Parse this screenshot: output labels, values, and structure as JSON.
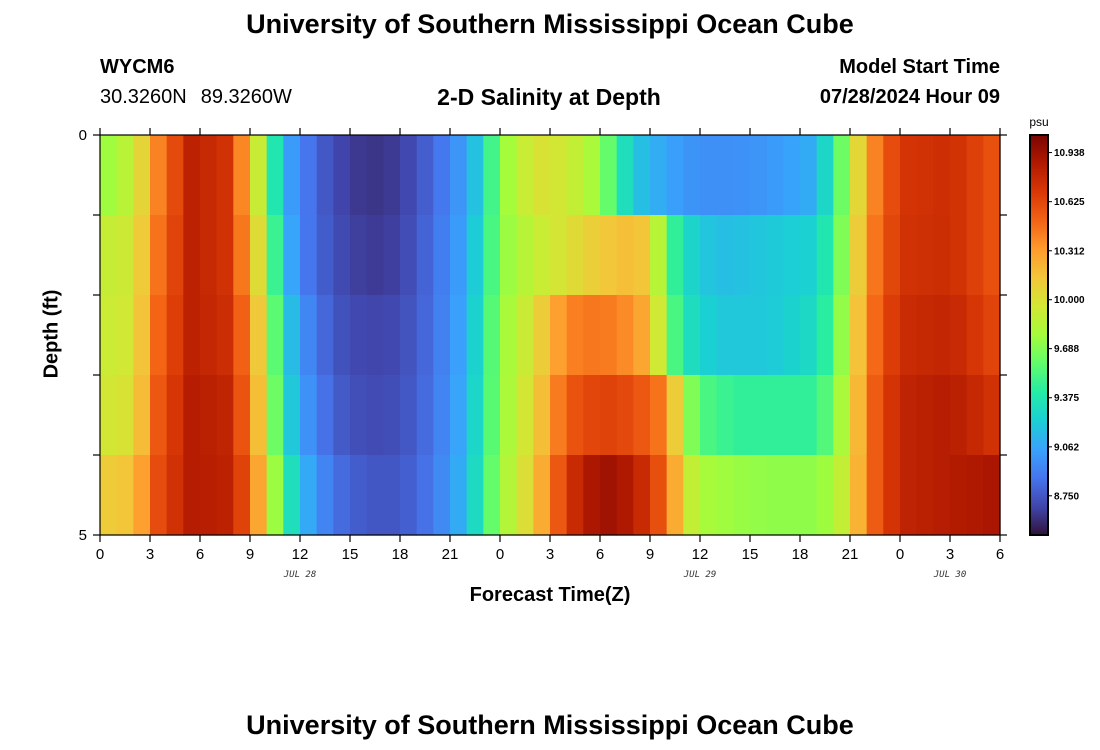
{
  "page": {
    "title": "University of Southern Mississippi Ocean Cube",
    "footer_title": "University of Southern Mississippi Ocean Cube",
    "station_id": "WYCM6",
    "lat": "30.3260N",
    "lon": "89.3260W",
    "subtitle": "2-D Salinity at Depth",
    "model_start_label": "Model Start Time",
    "model_start_value": "07/28/2024 Hour 09"
  },
  "chart_data": {
    "type": "heatmap",
    "title": "2-D Salinity at Depth",
    "xlabel": "Forecast Time(Z)",
    "ylabel": "Depth (ft)",
    "x_hours_range": [
      0,
      54
    ],
    "x_tick_labels": [
      "0",
      "3",
      "6",
      "9",
      "12",
      "15",
      "18",
      "21",
      "0",
      "3",
      "6",
      "9",
      "12",
      "15",
      "18",
      "21",
      "0",
      "3",
      "6"
    ],
    "date_labels": [
      {
        "text": "JUL 28",
        "hour": 12
      },
      {
        "text": "JUL 29",
        "hour": 36
      },
      {
        "text": "JUL 30",
        "hour": 51
      }
    ],
    "y_ticks": [
      0,
      5
    ],
    "y_range": [
      0,
      5
    ],
    "colorbar": {
      "unit": "psu",
      "min": 8.5,
      "max": 11.05,
      "tick_labels": [
        "10.938",
        "10.625",
        "10.312",
        "10.000",
        "9.688",
        "9.375",
        "9.062",
        "8.750"
      ],
      "colors": [
        "#30123b",
        "#4145ab",
        "#4675ed",
        "#39a2fc",
        "#1bcfd4",
        "#24eca6",
        "#61fc6c",
        "#a4fc3b",
        "#d1e834",
        "#f3c63a",
        "#fe9b2d",
        "#f36315",
        "#d93806",
        "#b11901",
        "#7a0403"
      ]
    },
    "depth_levels": [
      "0-1",
      "1-2",
      "2-3",
      "3-4",
      "4-5"
    ],
    "profiles": [
      [
        [
          0,
          9.72
        ],
        [
          2,
          9.9
        ],
        [
          3.5,
          10.4
        ],
        [
          5.5,
          10.82
        ],
        [
          7.5,
          10.72
        ],
        [
          9,
          10.22
        ],
        [
          10,
          9.62
        ],
        [
          11,
          9.12
        ],
        [
          12,
          8.92
        ],
        [
          14,
          8.7
        ],
        [
          16,
          8.62
        ],
        [
          18,
          8.65
        ],
        [
          20,
          8.82
        ],
        [
          22,
          9.05
        ],
        [
          23,
          9.3
        ],
        [
          24,
          9.7
        ],
        [
          26,
          10.0
        ],
        [
          28,
          9.95
        ],
        [
          30,
          9.75
        ],
        [
          31,
          9.45
        ],
        [
          32,
          9.2
        ],
        [
          34,
          9.05
        ],
        [
          36,
          8.97
        ],
        [
          38,
          8.97
        ],
        [
          40,
          9.0
        ],
        [
          43,
          9.1
        ],
        [
          44,
          9.45
        ],
        [
          45,
          9.8
        ],
        [
          46,
          10.3
        ],
        [
          48,
          10.7
        ],
        [
          51,
          10.75
        ],
        [
          54,
          10.55
        ]
      ],
      [
        [
          0,
          9.9
        ],
        [
          2,
          9.95
        ],
        [
          3.5,
          10.45
        ],
        [
          5.5,
          10.82
        ],
        [
          7.5,
          10.72
        ],
        [
          9,
          10.3
        ],
        [
          10,
          9.75
        ],
        [
          11,
          9.2
        ],
        [
          12,
          8.92
        ],
        [
          14,
          8.72
        ],
        [
          16,
          8.64
        ],
        [
          18,
          8.67
        ],
        [
          20,
          8.84
        ],
        [
          22,
          9.08
        ],
        [
          23,
          9.35
        ],
        [
          24,
          9.7
        ],
        [
          26,
          9.9
        ],
        [
          28,
          10.0
        ],
        [
          30,
          10.12
        ],
        [
          32,
          10.18
        ],
        [
          33,
          10.1
        ],
        [
          34,
          9.6
        ],
        [
          35,
          9.3
        ],
        [
          37,
          9.15
        ],
        [
          40,
          9.2
        ],
        [
          43,
          9.25
        ],
        [
          44,
          9.5
        ],
        [
          45,
          9.85
        ],
        [
          46,
          10.35
        ],
        [
          48,
          10.72
        ],
        [
          51,
          10.75
        ],
        [
          54,
          10.55
        ]
      ],
      [
        [
          0,
          9.92
        ],
        [
          2,
          9.97
        ],
        [
          3.5,
          10.5
        ],
        [
          5.5,
          10.82
        ],
        [
          7.5,
          10.75
        ],
        [
          9,
          10.4
        ],
        [
          10,
          9.85
        ],
        [
          11,
          9.3
        ],
        [
          12,
          9.0
        ],
        [
          14,
          8.75
        ],
        [
          16,
          8.68
        ],
        [
          18,
          8.7
        ],
        [
          20,
          8.85
        ],
        [
          22,
          9.1
        ],
        [
          23,
          9.4
        ],
        [
          24,
          9.72
        ],
        [
          26,
          10.0
        ],
        [
          28,
          10.4
        ],
        [
          30,
          10.45
        ],
        [
          32,
          10.35
        ],
        [
          33,
          10.2
        ],
        [
          34,
          9.7
        ],
        [
          35,
          9.35
        ],
        [
          37,
          9.2
        ],
        [
          40,
          9.2
        ],
        [
          43,
          9.3
        ],
        [
          44,
          9.55
        ],
        [
          45,
          9.9
        ],
        [
          46,
          10.4
        ],
        [
          48,
          10.75
        ],
        [
          51,
          10.8
        ],
        [
          54,
          10.6
        ]
      ],
      [
        [
          0,
          9.95
        ],
        [
          2,
          10.0
        ],
        [
          3.5,
          10.55
        ],
        [
          5.5,
          10.85
        ],
        [
          7.5,
          10.8
        ],
        [
          9,
          10.45
        ],
        [
          10,
          9.9
        ],
        [
          11,
          9.35
        ],
        [
          12,
          9.05
        ],
        [
          14,
          8.78
        ],
        [
          16,
          8.7
        ],
        [
          18,
          8.72
        ],
        [
          20,
          8.86
        ],
        [
          22,
          9.12
        ],
        [
          23,
          9.42
        ],
        [
          24,
          9.72
        ],
        [
          26,
          10.05
        ],
        [
          28,
          10.55
        ],
        [
          30,
          10.65
        ],
        [
          32,
          10.6
        ],
        [
          34,
          10.4
        ],
        [
          35,
          9.8
        ],
        [
          36,
          9.55
        ],
        [
          38,
          9.45
        ],
        [
          40,
          9.45
        ],
        [
          43,
          9.45
        ],
        [
          44,
          9.65
        ],
        [
          45,
          9.95
        ],
        [
          46,
          10.45
        ],
        [
          48,
          10.8
        ],
        [
          51,
          10.85
        ],
        [
          54,
          10.7
        ]
      ],
      [
        [
          0,
          10.1
        ],
        [
          2,
          10.15
        ],
        [
          3.5,
          10.6
        ],
        [
          5.5,
          10.85
        ],
        [
          7.5,
          10.82
        ],
        [
          9,
          10.55
        ],
        [
          10,
          10.0
        ],
        [
          11,
          9.5
        ],
        [
          12,
          9.15
        ],
        [
          14,
          8.85
        ],
        [
          16,
          8.75
        ],
        [
          18,
          8.75
        ],
        [
          20,
          8.88
        ],
        [
          22,
          9.15
        ],
        [
          23,
          9.45
        ],
        [
          24,
          9.75
        ],
        [
          26,
          10.1
        ],
        [
          28,
          10.7
        ],
        [
          30,
          10.95
        ],
        [
          32,
          10.85
        ],
        [
          34,
          10.5
        ],
        [
          35,
          10.0
        ],
        [
          36,
          9.8
        ],
        [
          38,
          9.75
        ],
        [
          40,
          9.72
        ],
        [
          43,
          9.72
        ],
        [
          44,
          9.8
        ],
        [
          45,
          10.0
        ],
        [
          46,
          10.45
        ],
        [
          48,
          10.8
        ],
        [
          51,
          10.85
        ],
        [
          54,
          10.9
        ]
      ]
    ]
  }
}
